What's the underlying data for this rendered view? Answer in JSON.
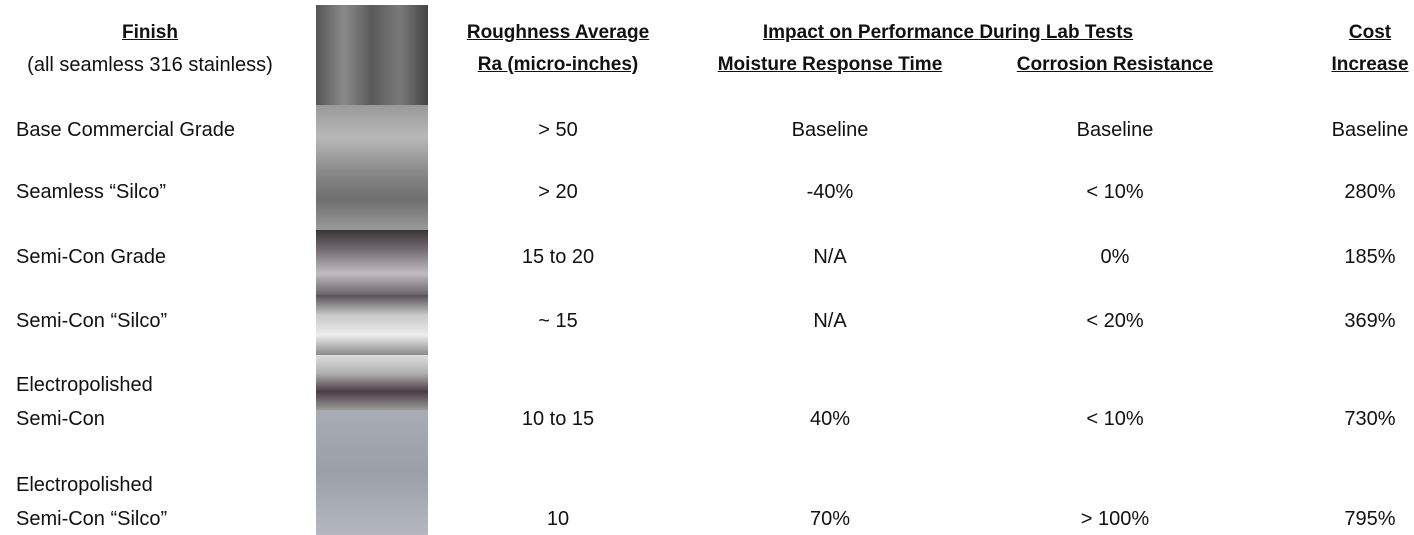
{
  "header": {
    "finish": "Finish",
    "finish_note": "(all seamless 316 stainless)",
    "roughness": [
      "Roughness Average",
      "Ra (micro-inches)"
    ],
    "impact": "Impact on Performance During Lab Tests",
    "moisture": "Moisture Response Time",
    "corrosion": "Corrosion Resistance",
    "cost": [
      "Cost",
      "Increase"
    ]
  },
  "rows": [
    {
      "finish": [
        "Base Commercial Grade"
      ],
      "roughness": "> 50",
      "moisture": "Baseline",
      "corrosion": "Baseline",
      "cost": "Baseline"
    },
    {
      "finish": [
        "Seamless “Silco”"
      ],
      "roughness": "> 20",
      "moisture": "-40%",
      "corrosion": "< 10%",
      "cost": "280%"
    },
    {
      "finish": [
        "Semi-Con Grade"
      ],
      "roughness": "15 to 20",
      "moisture": "N/A",
      "corrosion": "0%",
      "cost": "185%"
    },
    {
      "finish": [
        "Semi-Con “Silco”"
      ],
      "roughness": "~ 15",
      "moisture": "N/A",
      "corrosion": "< 20%",
      "cost": "369%"
    },
    {
      "finish": [
        "Electropolished",
        "Semi-Con"
      ],
      "roughness": "10 to 15",
      "moisture": "40%",
      "corrosion": "< 10%",
      "cost": "730%"
    },
    {
      "finish": [
        "Electropolished",
        "Semi-Con “Silco”"
      ],
      "roughness": "10",
      "moisture": "70%",
      "corrosion": "> 100%",
      "cost": "795%"
    }
  ]
}
